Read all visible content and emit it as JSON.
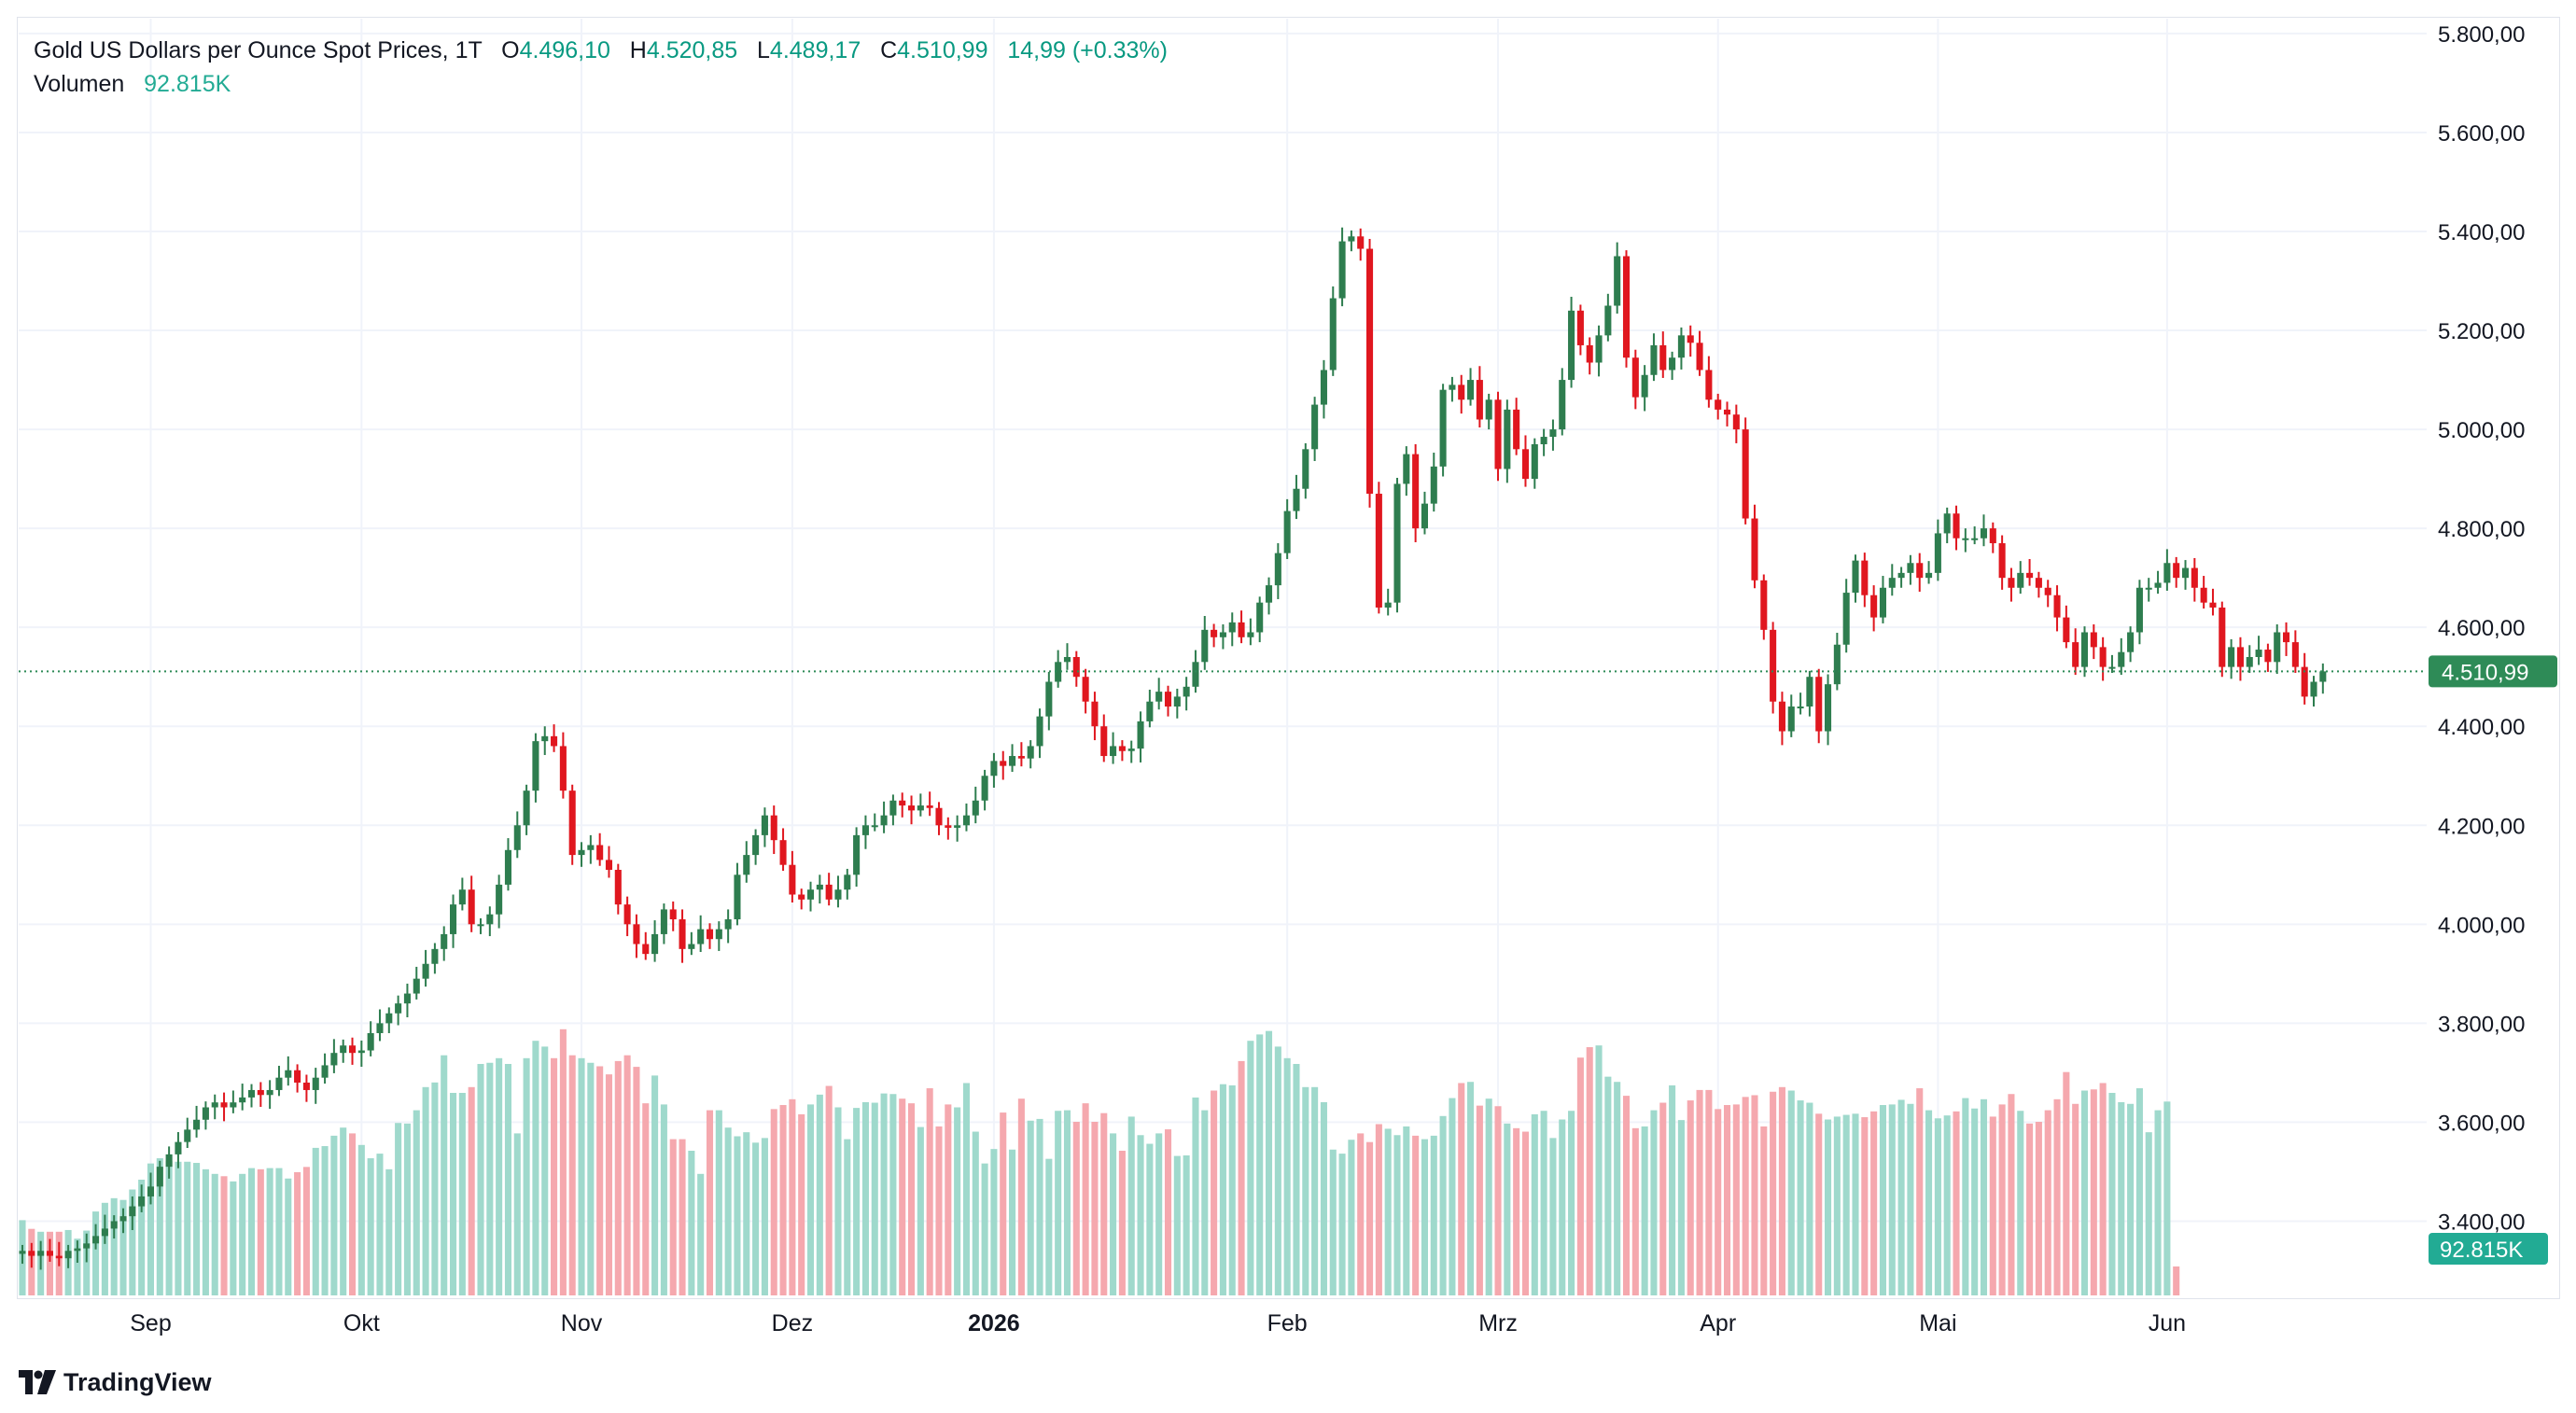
{
  "legend": {
    "symbol": "Gold US Dollars per Ounce Spot Prices, 1T",
    "o_label": "O",
    "o_value": "4.496,10",
    "h_label": "H",
    "h_value": "4.520,85",
    "l_label": "L",
    "l_value": "4.489,17",
    "c_label": "C",
    "c_value": "4.510,99",
    "change": "14,99 (+0.33%)",
    "volume_label": "Volumen",
    "volume_value": "92.815K"
  },
  "badges": {
    "price": "4.510,99",
    "volume": "92.815K"
  },
  "brand": {
    "name": "TradingView"
  },
  "colors": {
    "up": "#26a69a",
    "down": "#ef5350",
    "up_candle": "#2e7d4f",
    "down_candle": "#e0171f",
    "vol_up": "#9fd9cc",
    "vol_down": "#f5a8ae",
    "badge_price": "#2e8b57",
    "badge_volume": "#22ab94"
  },
  "chart_data": {
    "type": "candlestick",
    "title": "Gold US Dollars per Ounce Spot Prices, 1T",
    "y_axis": {
      "position": "right",
      "ticks": [
        "3.400,00",
        "3.600,00",
        "3.800,00",
        "4.000,00",
        "4.200,00",
        "4.400,00",
        "4.600,00",
        "4.800,00",
        "5.000,00",
        "5.200,00",
        "5.400,00",
        "5.600,00",
        "5.800,00"
      ],
      "tick_values": [
        3400,
        3600,
        3800,
        4000,
        4200,
        4400,
        4600,
        4800,
        5000,
        5200,
        5400,
        5600,
        5800
      ],
      "range": [
        3250,
        5830
      ]
    },
    "x_axis": {
      "labels": [
        {
          "text": "Sep",
          "bold": false
        },
        {
          "text": "Okt",
          "bold": false
        },
        {
          "text": "Nov",
          "bold": false
        },
        {
          "text": "Dez",
          "bold": false
        },
        {
          "text": "2026",
          "bold": true
        },
        {
          "text": "Feb",
          "bold": false
        },
        {
          "text": "Mrz",
          "bold": false
        },
        {
          "text": "Apr",
          "bold": false
        },
        {
          "text": "Mai",
          "bold": false
        },
        {
          "text": "Jun",
          "bold": false
        }
      ],
      "label_bar_index": [
        14,
        37,
        61,
        84,
        106,
        138,
        161,
        185,
        209,
        234
      ]
    },
    "last_close": 4510.99,
    "grid": true,
    "volume_pane": "bottom overlay",
    "close": [
      3340,
      3330,
      3340,
      3330,
      3325,
      3340,
      3345,
      3355,
      3370,
      3385,
      3400,
      3410,
      3430,
      3450,
      3470,
      3510,
      3535,
      3560,
      3585,
      3605,
      3630,
      3640,
      3630,
      3640,
      3650,
      3665,
      3655,
      3665,
      3690,
      3705,
      3680,
      3665,
      3690,
      3715,
      3740,
      3755,
      3740,
      3745,
      3780,
      3800,
      3820,
      3840,
      3860,
      3890,
      3920,
      3950,
      3980,
      4040,
      4070,
      4000,
      4000,
      4020,
      4080,
      4150,
      4200,
      4270,
      4370,
      4380,
      4360,
      4270,
      4140,
      4150,
      4160,
      4130,
      4110,
      4040,
      4000,
      3960,
      3940,
      3980,
      4030,
      4010,
      3950,
      3960,
      3990,
      3970,
      3990,
      4010,
      4100,
      4140,
      4180,
      4220,
      4170,
      4120,
      4060,
      4050,
      4070,
      4080,
      4050,
      4070,
      4100,
      4180,
      4200,
      4200,
      4220,
      4250,
      4240,
      4230,
      4240,
      4235,
      4200,
      4195,
      4200,
      4220,
      4250,
      4300,
      4330,
      4320,
      4340,
      4335,
      4360,
      4420,
      4490,
      4530,
      4540,
      4500,
      4450,
      4400,
      4340,
      4360,
      4350,
      4355,
      4410,
      4450,
      4470,
      4440,
      4460,
      4480,
      4530,
      4595,
      4580,
      4590,
      4610,
      4580,
      4590,
      4650,
      4685,
      4750,
      4835,
      4880,
      4960,
      5050,
      5120,
      5265,
      5380,
      5390,
      5365,
      4870,
      4640,
      4650,
      4890,
      4950,
      4800,
      4850,
      4925,
      5080,
      5090,
      5060,
      5100,
      5020,
      5060,
      4920,
      5040,
      4960,
      4900,
      4970,
      4985,
      5000,
      5100,
      5240,
      5170,
      5135,
      5190,
      5250,
      5350,
      5145,
      5065,
      5110,
      5170,
      5120,
      5145,
      5190,
      5175,
      5120,
      5060,
      5040,
      5030,
      5000,
      4820,
      4695,
      4595,
      4450,
      4390,
      4440,
      4440,
      4500,
      4390,
      4485,
      4565,
      4670,
      4735,
      4665,
      4620,
      4680,
      4700,
      4710,
      4730,
      4700,
      4710,
      4790,
      4830,
      4780,
      4780,
      4780,
      4800,
      4770,
      4700,
      4680,
      4710,
      4700,
      4680,
      4665,
      4620,
      4570,
      4520,
      4590,
      4560,
      4520,
      4520,
      4550,
      4590,
      4680,
      4680,
      4690,
      4730,
      4700,
      4720,
      4680,
      4650,
      4640,
      4520,
      4560,
      4520,
      4540,
      4555,
      4530,
      4590,
      4570,
      4520,
      4460,
      4490,
      4511
    ],
    "volume_k": [
      130,
      115,
      110,
      110,
      110,
      113,
      98,
      112,
      145,
      160,
      168,
      165,
      183,
      200,
      228,
      237,
      232,
      231,
      231,
      229,
      218,
      210,
      206,
      197,
      210,
      220,
      218,
      220,
      220,
      202,
      213,
      222,
      255,
      258,
      276,
      290,
      280,
      260,
      237,
      245,
      218,
      298,
      297,
      320,
      360,
      368,
      415,
      350,
      350,
      360,
      400,
      402,
      410,
      400,
      280,
      410,
      440,
      430,
      410,
      460,
      415,
      410,
      402,
      396,
      382,
      405,
      415,
      395,
      332,
      380,
      330,
      270,
      270,
      250,
      210,
      320,
      320,
      290,
      275,
      282,
      264,
      272,
      322,
      329,
      339,
      313,
      330,
      347,
      362,
      325,
      270,
      324,
      334,
      333,
      349,
      348,
      340,
      332,
      291,
      358,
      292,
      330,
      325,
      367,
      283,
      228,
      253,
      316,
      252,
      340,
      302,
      305,
      236,
      319,
      320,
      300,
      332,
      300,
      315,
      280,
      250,
      309,
      277,
      262,
      280,
      287,
      241,
      242,
      342,
      320,
      354,
      365,
      363,
      405,
      440,
      451,
      457,
      430,
      410,
      400,
      360,
      360,
      334,
      252,
      245,
      269,
      280,
      265,
      296,
      288,
      277,
      292,
      276,
      270,
      276,
      310,
      341,
      367,
      369,
      328,
      340,
      327,
      297,
      289,
      283,
      313,
      319,
      272,
      304,
      319,
      411,
      429,
      432,
      378,
      369,
      345,
      289,
      292,
      320,
      333,
      363,
      303,
      337,
      355,
      355,
      322,
      329,
      330,
      343,
      346,
      292,
      352,
      360,
      354,
      337,
      333,
      314,
      304,
      309,
      312,
      314,
      308,
      318,
      329,
      330,
      338,
      331,
      358,
      320,
      306,
      311,
      318,
      341,
      323,
      339,
      309,
      330,
      348,
      319,
      297,
      300,
      320,
      339,
      386,
      331,
      354,
      356,
      367,
      350,
      334,
      331,
      358,
      282,
      320,
      335,
      50
    ]
  }
}
